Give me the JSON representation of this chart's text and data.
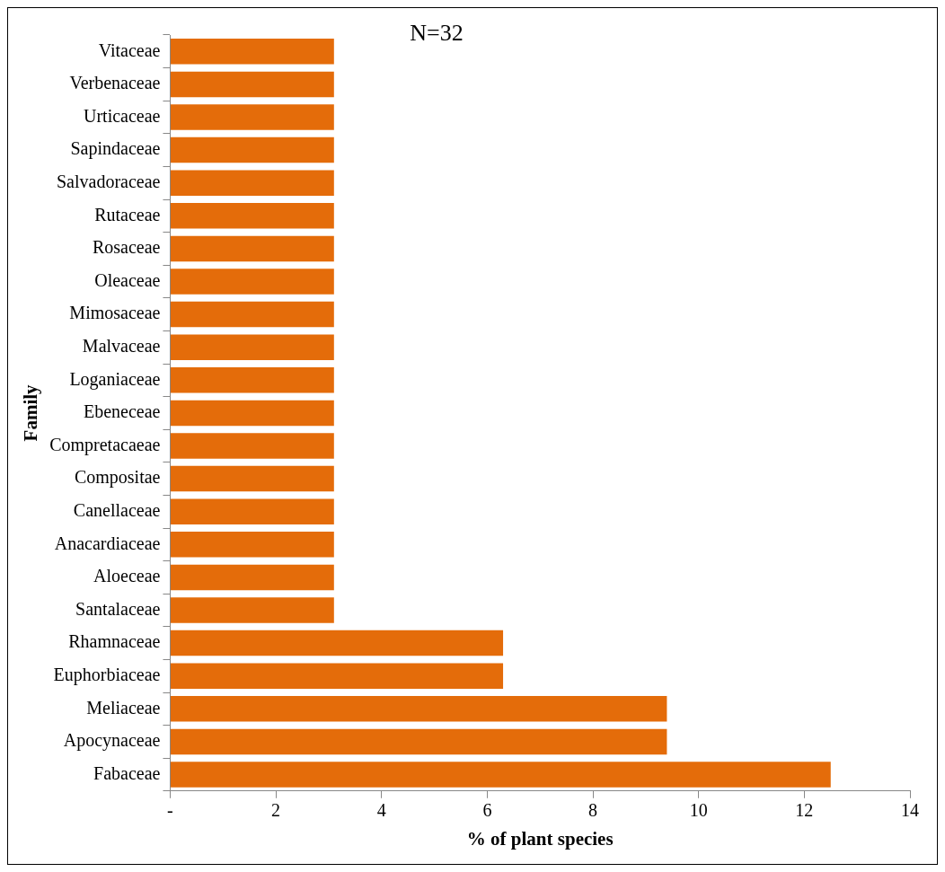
{
  "chart_data": {
    "type": "bar",
    "orientation": "horizontal",
    "xlabel": "% of plant species",
    "ylabel": "Family",
    "annotations": [
      "N=32"
    ],
    "categories": [
      "Vitaceae",
      "Verbenaceae",
      "Urticaceae",
      "Sapindaceae",
      "Salvadoraceae",
      "Rutaceae",
      "Rosaceae",
      "Oleaceae",
      "Mimosaceae",
      "Malvaceae",
      "Loganiaceae",
      "Ebeneceae",
      "Compretacaeae",
      "Compositae",
      "Canellaceae",
      "Anacardiaceae",
      "Aloeceae",
      "Santalaceae",
      "Rhamnaceae",
      "Euphorbiaceae",
      "Meliaceae",
      "Apocynaceae",
      "Fabaceae"
    ],
    "values": [
      3.1,
      3.1,
      3.1,
      3.1,
      3.1,
      3.1,
      3.1,
      3.1,
      3.1,
      3.1,
      3.1,
      3.1,
      3.1,
      3.1,
      3.1,
      3.1,
      3.1,
      3.1,
      6.3,
      6.3,
      9.4,
      9.4,
      12.5
    ],
    "color": "#e46c0a",
    "xlim": [
      0,
      14
    ],
    "xticks": [
      {
        "value": 0,
        "label": "-"
      },
      2,
      4,
      6,
      8,
      10,
      12,
      14
    ],
    "grid": false,
    "legend": false
  }
}
